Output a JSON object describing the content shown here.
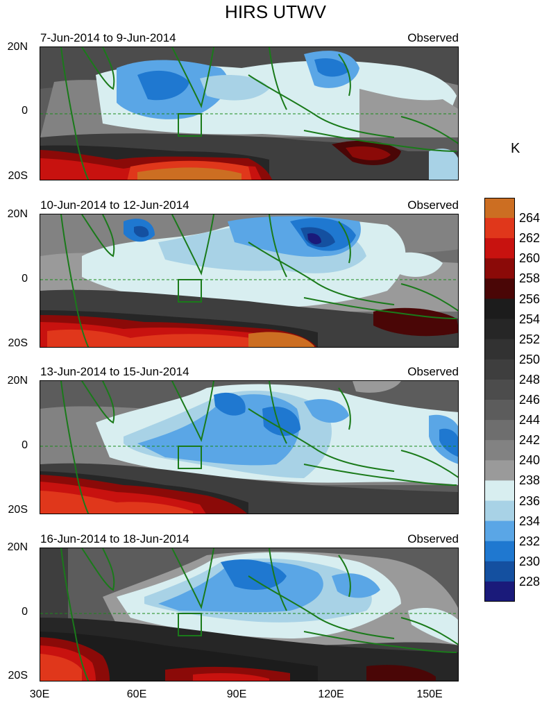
{
  "figure": {
    "title": "HIRS UTWV",
    "units_label": "K"
  },
  "panels": [
    {
      "left_title": "7-Jun-2014 to 9-Jun-2014",
      "right_title": "Observed"
    },
    {
      "left_title": "10-Jun-2014 to 12-Jun-2014",
      "right_title": "Observed"
    },
    {
      "left_title": "13-Jun-2014 to 15-Jun-2014",
      "right_title": "Observed"
    },
    {
      "left_title": "16-Jun-2014 to 18-Jun-2014",
      "right_title": "Observed"
    }
  ],
  "axes": {
    "y_ticks": [
      "20N",
      "0",
      "20S"
    ],
    "x_ticks": [
      "30E",
      "60E",
      "90E",
      "120E",
      "150E"
    ],
    "lon_range": [
      30,
      160
    ],
    "lat_range": [
      -20,
      20
    ]
  },
  "colorbar": {
    "labels": [
      "264",
      "262",
      "260",
      "258",
      "256",
      "254",
      "252",
      "250",
      "248",
      "246",
      "244",
      "242",
      "240",
      "238",
      "236",
      "234",
      "232",
      "230",
      "228"
    ],
    "colors": [
      "#cc6e22",
      "#e0371b",
      "#c8120f",
      "#8b0a08",
      "#4a0606",
      "#1c1c1c",
      "#262626",
      "#323232",
      "#3e3e3e",
      "#4c4c4c",
      "#5c5c5c",
      "#6e6e6e",
      "#828282",
      "#9a9a9a",
      "#d8eef0",
      "#a8d2e6",
      "#5aa6e6",
      "#1f78d0",
      "#1450a0",
      "#1a1a7a"
    ]
  },
  "map_colors": {
    "coast": "#1a7a1a",
    "equator": "#1a8a1a"
  }
}
